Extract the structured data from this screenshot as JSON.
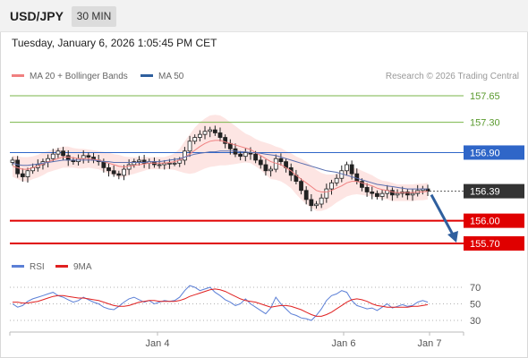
{
  "header": {
    "symbol": "USD/JPY",
    "timeframe": "30 MIN"
  },
  "datetime": "Tuesday, January 6, 2026 1:05:45 PM CET",
  "legend": {
    "bollinger_label": "MA 20 + Bollinger Bands",
    "bollinger_color": "#f08080",
    "ma50_label": "MA 50",
    "ma50_color": "#2f5f9e"
  },
  "credit": "Research © 2026 Trading Central",
  "rsi_legend": {
    "rsi_label": "RSI",
    "rsi_color": "#5b7fd6",
    "ma_label": "9MA",
    "ma_color": "#e02020"
  },
  "chart_data": {
    "type": "candlestick",
    "levels": [
      {
        "value": "157.65",
        "price": 157.65,
        "kind": "resistance",
        "color": "#7ab648"
      },
      {
        "value": "157.30",
        "price": 157.3,
        "kind": "resistance",
        "color": "#7ab648"
      },
      {
        "value": "156.90",
        "price": 156.9,
        "kind": "pivot",
        "color": "#2f66c8"
      },
      {
        "value": "156.39",
        "price": 156.39,
        "kind": "last",
        "color": "#333333"
      },
      {
        "value": "156.00",
        "price": 156.0,
        "kind": "support",
        "color": "#e00000"
      },
      {
        "value": "155.70",
        "price": 155.7,
        "kind": "support",
        "color": "#e00000"
      }
    ],
    "x_ticks": [
      "Jan 4",
      "Jan 6",
      "Jan 7"
    ],
    "rsi_ticks": [
      "70",
      "50",
      "30"
    ],
    "rsi_levels": [
      70,
      50,
      30
    ],
    "price_close": [
      156.8,
      156.62,
      156.58,
      156.66,
      156.7,
      156.74,
      156.78,
      156.82,
      156.88,
      156.92,
      156.86,
      156.8,
      156.78,
      156.82,
      156.86,
      156.84,
      156.8,
      156.78,
      156.7,
      156.66,
      156.62,
      156.6,
      156.68,
      156.74,
      156.78,
      156.8,
      156.76,
      156.78,
      156.74,
      156.74,
      156.76,
      156.76,
      156.76,
      156.8,
      156.92,
      157.05,
      157.1,
      157.14,
      157.18,
      157.2,
      157.16,
      157.1,
      157.02,
      156.95,
      156.88,
      156.85,
      156.9,
      156.88,
      156.8,
      156.74,
      156.66,
      156.68,
      156.82,
      156.78,
      156.7,
      156.6,
      156.52,
      156.4,
      156.28,
      156.2,
      156.22,
      156.3,
      156.42,
      156.5,
      156.56,
      156.66,
      156.74,
      156.62,
      156.52,
      156.44,
      156.38,
      156.36,
      156.32,
      156.36,
      156.4,
      156.34,
      156.36,
      156.38,
      156.34,
      156.36,
      156.4,
      156.42,
      156.39
    ],
    "ma50": [
      156.76,
      156.74,
      156.73,
      156.73,
      156.74,
      156.75,
      156.76,
      156.77,
      156.78,
      156.79,
      156.8,
      156.8,
      156.8,
      156.8,
      156.8,
      156.8,
      156.8,
      156.79,
      156.78,
      156.78,
      156.77,
      156.77,
      156.77,
      156.77,
      156.77,
      156.77,
      156.77,
      156.78,
      156.78,
      156.78,
      156.79,
      156.8,
      156.81,
      156.82,
      156.84,
      156.86,
      156.88,
      156.89,
      156.9,
      156.91,
      156.91,
      156.92,
      156.92,
      156.92,
      156.92,
      156.91,
      156.91,
      156.9,
      156.9,
      156.89,
      156.88,
      156.87,
      156.86,
      156.84,
      156.82,
      156.8,
      156.78,
      156.76,
      156.74,
      156.72,
      156.7,
      156.68,
      156.66,
      156.65,
      156.64,
      156.62,
      156.6,
      156.58,
      156.56,
      156.54,
      156.52,
      156.5,
      156.48,
      156.47,
      156.46,
      156.45,
      156.44,
      156.43,
      156.42,
      156.42,
      156.42,
      156.42,
      156.42
    ],
    "ma20": [
      156.72,
      156.7,
      156.68,
      156.68,
      156.7,
      156.72,
      156.75,
      156.78,
      156.8,
      156.82,
      156.84,
      156.84,
      156.83,
      156.82,
      156.82,
      156.82,
      156.81,
      156.8,
      156.78,
      156.76,
      156.74,
      156.72,
      156.71,
      156.72,
      156.73,
      156.74,
      156.75,
      156.76,
      156.76,
      156.76,
      156.76,
      156.77,
      156.78,
      156.8,
      156.84,
      156.88,
      156.93,
      156.98,
      157.02,
      157.05,
      157.06,
      157.06,
      157.04,
      157.02,
      157.0,
      156.98,
      156.96,
      156.94,
      156.9,
      156.86,
      156.82,
      156.78,
      156.76,
      156.74,
      156.7,
      156.66,
      156.6,
      156.55,
      156.5,
      156.45,
      156.4,
      156.38,
      156.38,
      156.4,
      156.43,
      156.46,
      156.5,
      156.52,
      156.52,
      156.5,
      156.48,
      156.46,
      156.43,
      156.41,
      156.4,
      156.38,
      156.37,
      156.37,
      156.37,
      156.37,
      156.38,
      156.38,
      156.39
    ],
    "band_width": [
      0.14,
      0.15,
      0.16,
      0.16,
      0.15,
      0.15,
      0.15,
      0.14,
      0.14,
      0.14,
      0.14,
      0.14,
      0.13,
      0.13,
      0.13,
      0.12,
      0.12,
      0.12,
      0.13,
      0.14,
      0.14,
      0.15,
      0.14,
      0.12,
      0.11,
      0.1,
      0.09,
      0.08,
      0.08,
      0.08,
      0.08,
      0.09,
      0.11,
      0.15,
      0.21,
      0.26,
      0.3,
      0.32,
      0.33,
      0.34,
      0.34,
      0.33,
      0.31,
      0.28,
      0.25,
      0.22,
      0.19,
      0.18,
      0.18,
      0.19,
      0.21,
      0.23,
      0.22,
      0.22,
      0.22,
      0.23,
      0.25,
      0.27,
      0.28,
      0.28,
      0.27,
      0.25,
      0.23,
      0.21,
      0.19,
      0.18,
      0.18,
      0.18,
      0.17,
      0.16,
      0.15,
      0.14,
      0.13,
      0.12,
      0.12,
      0.12,
      0.11,
      0.11,
      0.11,
      0.11,
      0.11,
      0.11,
      0.11
    ],
    "forecast": {
      "from": 156.39,
      "to": 155.7,
      "color": "#2f5f9e"
    },
    "rsi": [
      50,
      46,
      48,
      53,
      56,
      58,
      60,
      62,
      64,
      60,
      58,
      55,
      52,
      54,
      58,
      55,
      52,
      50,
      46,
      44,
      43,
      47,
      52,
      56,
      58,
      55,
      52,
      54,
      50,
      52,
      54,
      53,
      54,
      58,
      66,
      72,
      70,
      66,
      68,
      70,
      64,
      60,
      55,
      52,
      48,
      50,
      56,
      50,
      46,
      42,
      38,
      45,
      58,
      50,
      44,
      38,
      36,
      33,
      32,
      30,
      36,
      44,
      54,
      60,
      62,
      66,
      64,
      54,
      48,
      46,
      44,
      45,
      42,
      46,
      50,
      45,
      47,
      49,
      47,
      48,
      52,
      54,
      52
    ],
    "rsi_ma": [
      52,
      52,
      51,
      51,
      52,
      53,
      55,
      57,
      59,
      60,
      60,
      59,
      58,
      57,
      57,
      56,
      55,
      54,
      52,
      50,
      48,
      47,
      47,
      48,
      50,
      52,
      53,
      54,
      54,
      53,
      53,
      53,
      53,
      54,
      56,
      59,
      61,
      63,
      65,
      67,
      68,
      67,
      65,
      62,
      59,
      56,
      54,
      53,
      52,
      50,
      48,
      46,
      47,
      48,
      48,
      47,
      45,
      43,
      40,
      37,
      35,
      35,
      37,
      40,
      44,
      48,
      52,
      55,
      56,
      55,
      53,
      50,
      48,
      47,
      46,
      46,
      46,
      46,
      46,
      47,
      47,
      48,
      49
    ]
  }
}
